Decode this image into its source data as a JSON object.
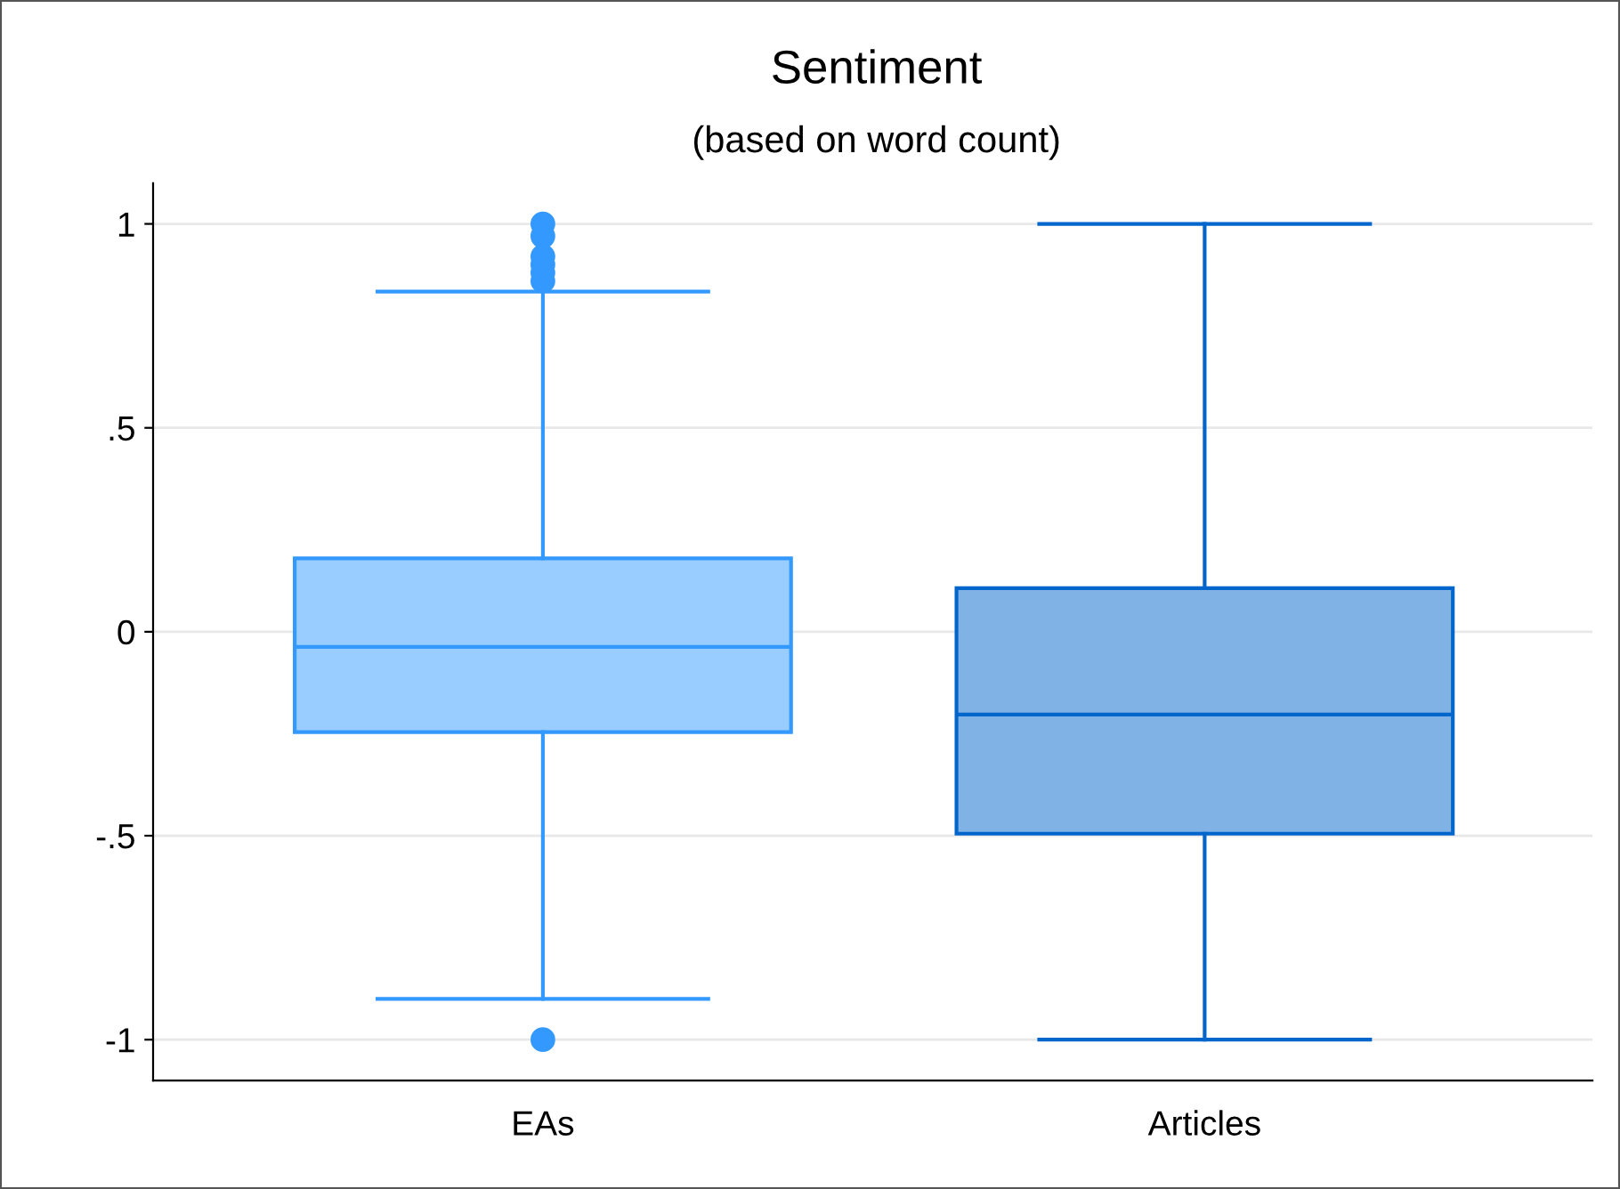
{
  "chart_data": {
    "type": "box",
    "title": "Sentiment",
    "subtitle": "(based on word count)",
    "categories": [
      "EAs",
      "Articles"
    ],
    "boxes": [
      {
        "low": -0.9,
        "q1": -0.246,
        "median": -0.037,
        "q3": 0.18,
        "high": 0.834,
        "outliers": [
          1.0,
          0.97,
          0.92,
          0.9,
          0.88,
          0.86,
          -1.0
        ]
      },
      {
        "low": -1.0,
        "q1": -0.495,
        "median": -0.203,
        "q3": 0.107,
        "high": 1.0
      }
    ],
    "colors": [
      "#3399ff",
      "#0066cc"
    ],
    "ylim": [
      -1.1,
      1.1
    ],
    "yticks": [
      {
        "value": -1,
        "label": "-1"
      },
      {
        "value": -0.5,
        "label": "-.5"
      },
      {
        "value": 0,
        "label": "0"
      },
      {
        "value": 0.5,
        "label": ".5"
      },
      {
        "value": 1,
        "label": "1"
      }
    ],
    "grid": "y"
  }
}
